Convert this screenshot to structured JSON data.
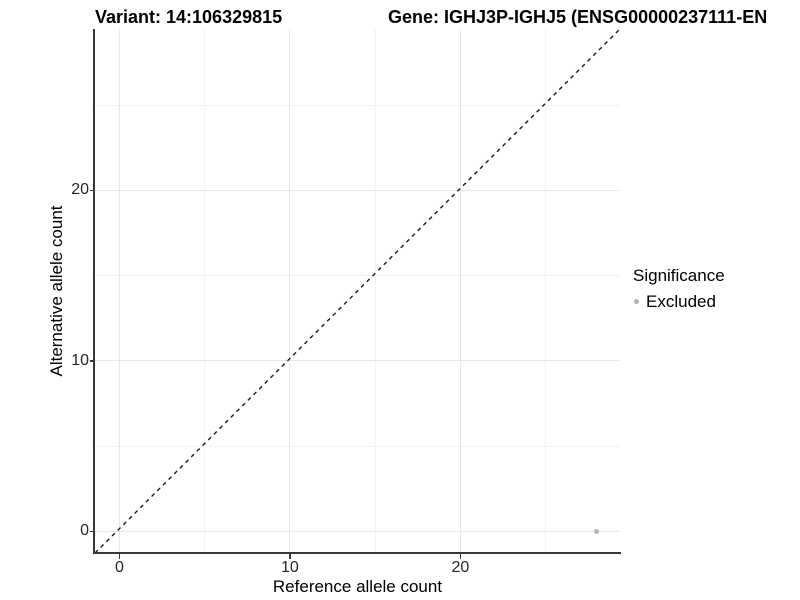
{
  "header": {
    "variant_title": "Variant: 14:106329815",
    "gene_title": "Gene: IGHJ3P-IGHJ5 (ENSG00000237111-EN"
  },
  "chart_data": {
    "type": "scatter",
    "xlabel": "Reference allele count",
    "ylabel": "Alternative allele count",
    "xlim": [
      -1.4,
      29.4
    ],
    "ylim": [
      -1.4,
      29.4
    ],
    "x_major_ticks": [
      0,
      10,
      20
    ],
    "y_major_ticks": [
      0,
      10,
      20
    ],
    "minor_gridlines": [
      5,
      15,
      25
    ],
    "grid": "on",
    "points": [
      {
        "x": 28,
        "y": 0,
        "series": "Excluded"
      }
    ],
    "reference_line": {
      "kind": "identity y=x",
      "style": "dashed",
      "from": [
        -1.4,
        -1.4
      ],
      "to": [
        29.4,
        29.4
      ]
    },
    "legend": {
      "title": "Significance",
      "position": "right",
      "items": [
        {
          "label": "Excluded",
          "color": "#b4b4b4"
        }
      ]
    }
  },
  "colors": {
    "background": "#ffffff",
    "axis_line": "#383838",
    "tick_label": "#262626",
    "gridline_major": "#e7e7e7",
    "gridline_minor": "#f2f2f2",
    "point": "#b4b4b4",
    "dashed_line": "#1a1a1a"
  }
}
